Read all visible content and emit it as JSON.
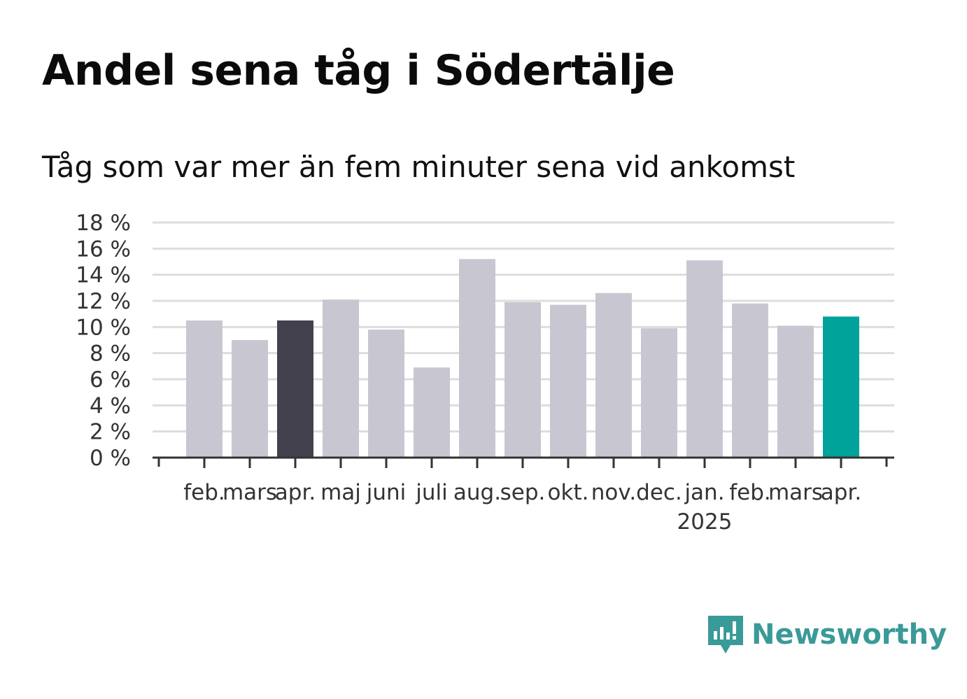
{
  "title": "Andel sena tåg i Södertälje",
  "subtitle": "Tåg som var mer än fem minuter sena vid ankomst",
  "brand": {
    "name": "Newsworthy",
    "color": "#3a9a98",
    "icon": "newsworthy-logo-icon"
  },
  "colors": {
    "default_bar": "#c8c7d1",
    "highlight_prior": "#42414d",
    "highlight_latest": "#00a39a",
    "grid": "#dddddd",
    "axis": "#333333"
  },
  "chart_data": {
    "type": "bar",
    "title": "Andel sena tåg i Södertälje",
    "subtitle": "Tåg som var mer än fem minuter sena vid ankomst",
    "xlabel": "",
    "ylabel": "",
    "categories": [
      "feb.",
      "mars",
      "apr.",
      "maj",
      "juni",
      "juli",
      "aug.",
      "sep.",
      "okt.",
      "nov.",
      "dec.",
      "jan.",
      "feb.",
      "mars",
      "apr."
    ],
    "year_labels": [
      {
        "index": 11,
        "label": "2025"
      }
    ],
    "values": [
      10.5,
      9.0,
      10.5,
      12.1,
      9.8,
      6.9,
      15.2,
      11.9,
      11.7,
      12.6,
      9.9,
      15.1,
      11.8,
      10.1,
      10.8
    ],
    "highlight": {
      "2": "prior",
      "14": "latest"
    },
    "ylim": [
      0,
      18
    ],
    "yticks": [
      0,
      2,
      4,
      6,
      8,
      10,
      12,
      14,
      16,
      18
    ],
    "ytick_suffix": " %",
    "grid": true,
    "legend": "none"
  }
}
